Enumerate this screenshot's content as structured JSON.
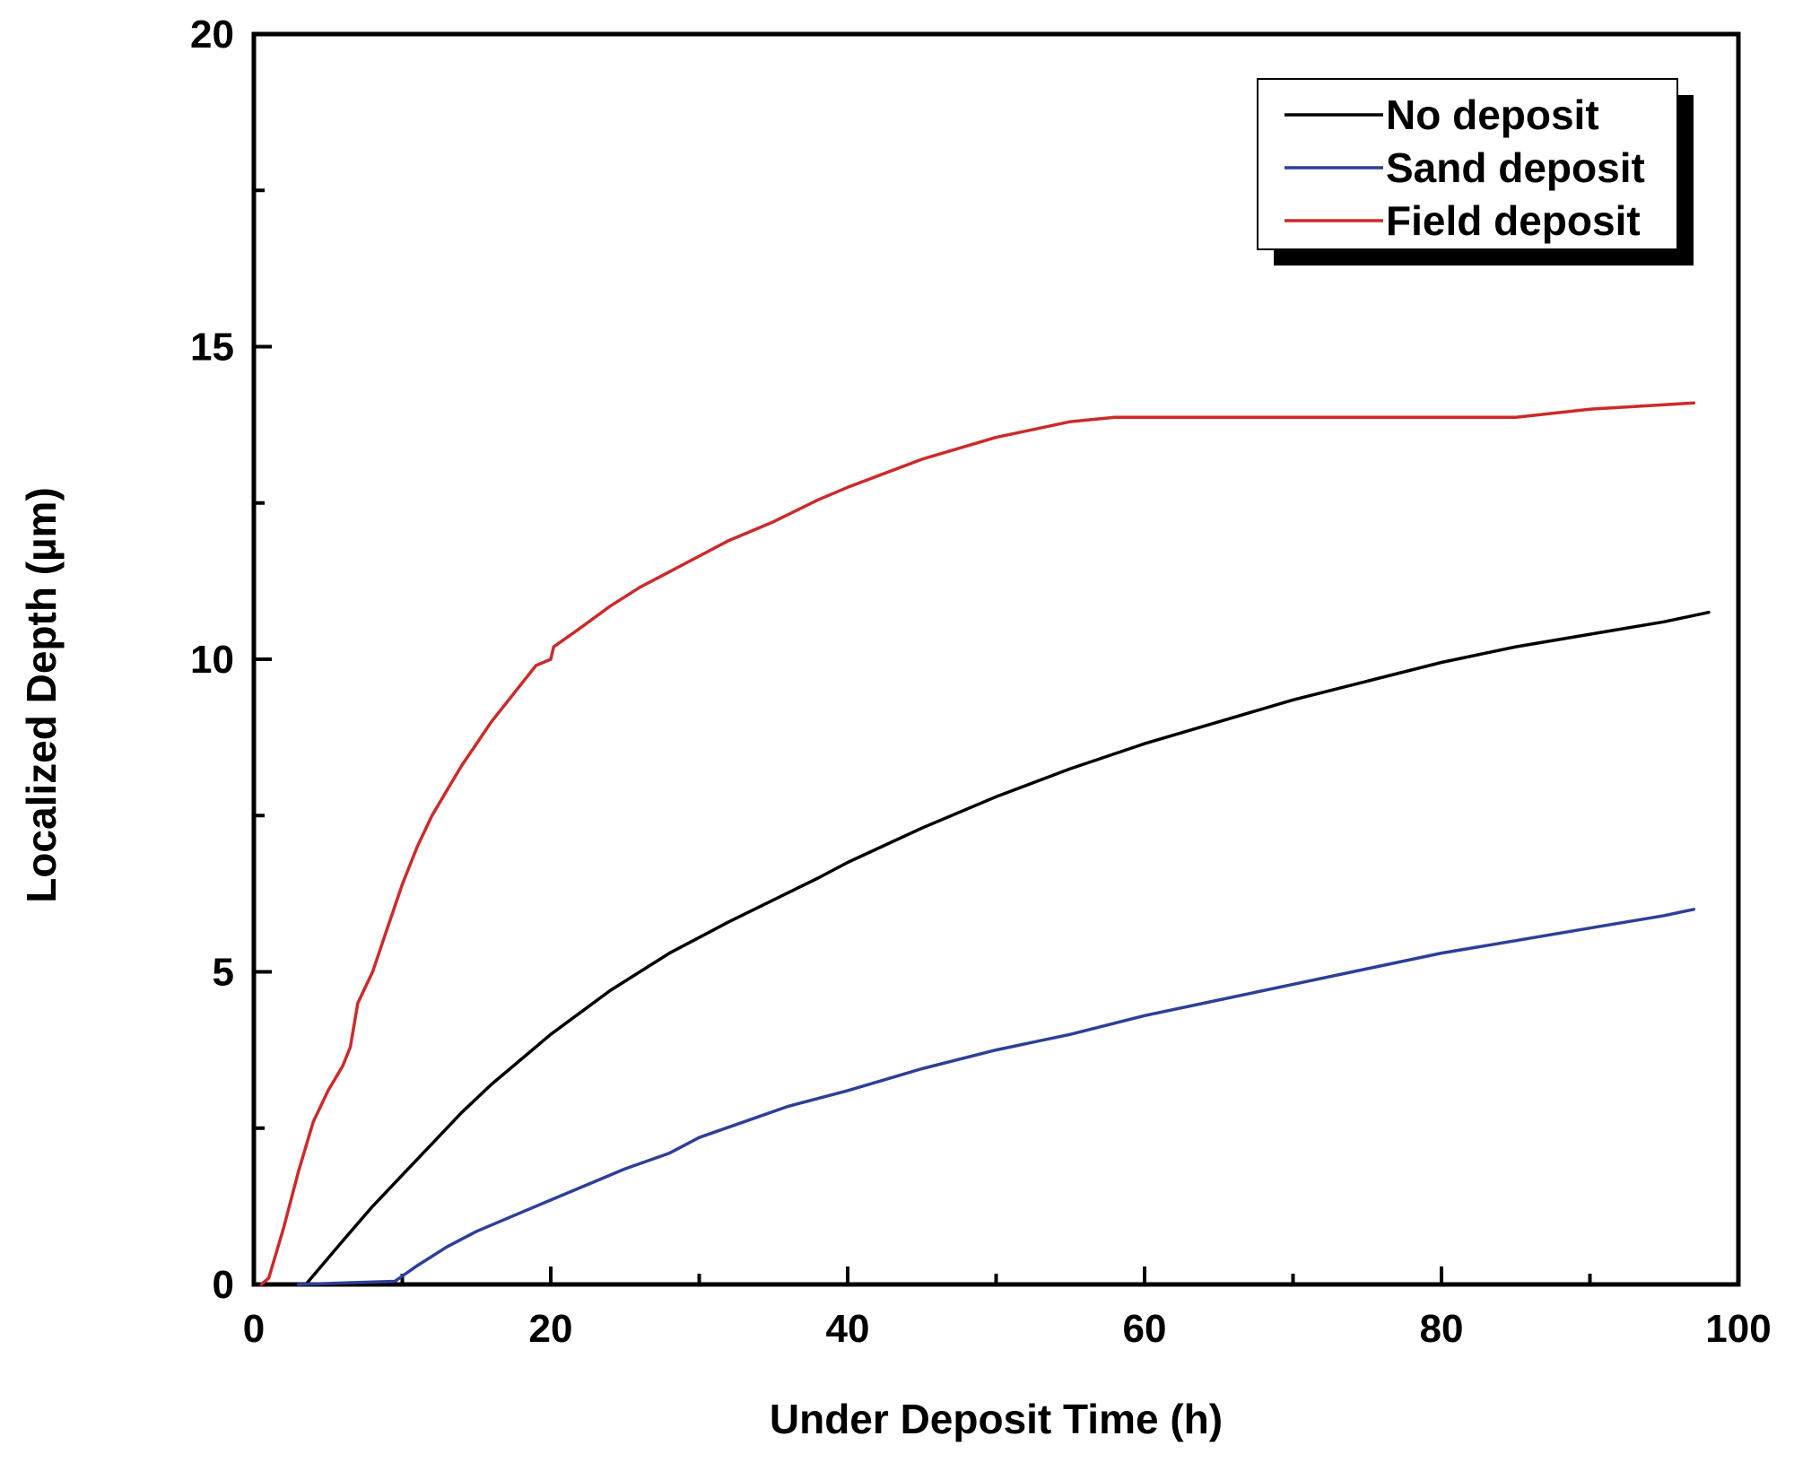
{
  "chart_data": {
    "type": "line",
    "title": "",
    "xlabel": "Under Deposit Time (h)",
    "ylabel": "Localized Depth (µm)",
    "xlim": [
      0,
      100
    ],
    "ylim": [
      0,
      20
    ],
    "x_ticks": [
      0,
      20,
      40,
      60,
      80,
      100
    ],
    "y_ticks": [
      0,
      5,
      10,
      15,
      20
    ],
    "x_tick_labels": [
      "0",
      "20",
      "40",
      "60",
      "80",
      "100"
    ],
    "y_tick_labels": [
      "0",
      "5",
      "10",
      "15",
      "20"
    ],
    "grid": false,
    "legend_position": "top-right",
    "series": [
      {
        "name": "No deposit",
        "color": "#000000",
        "points": [
          [
            3.5,
            0
          ],
          [
            6,
            0.7
          ],
          [
            8,
            1.25
          ],
          [
            10,
            1.75
          ],
          [
            12,
            2.25
          ],
          [
            14,
            2.75
          ],
          [
            16,
            3.2
          ],
          [
            18,
            3.6
          ],
          [
            20,
            4.0
          ],
          [
            22,
            4.35
          ],
          [
            24,
            4.7
          ],
          [
            26,
            5.0
          ],
          [
            28,
            5.3
          ],
          [
            30,
            5.55
          ],
          [
            32,
            5.8
          ],
          [
            35,
            6.15
          ],
          [
            38,
            6.5
          ],
          [
            40,
            6.75
          ],
          [
            45,
            7.3
          ],
          [
            50,
            7.8
          ],
          [
            55,
            8.25
          ],
          [
            60,
            8.65
          ],
          [
            65,
            9.0
          ],
          [
            70,
            9.35
          ],
          [
            75,
            9.65
          ],
          [
            80,
            9.95
          ],
          [
            85,
            10.2
          ],
          [
            90,
            10.4
          ],
          [
            95,
            10.6
          ],
          [
            98,
            10.75
          ]
        ]
      },
      {
        "name": "Sand deposit",
        "color": "#2c3f9a",
        "points": [
          [
            3,
            0
          ],
          [
            9.5,
            0.05
          ],
          [
            11,
            0.3
          ],
          [
            13,
            0.6
          ],
          [
            15,
            0.85
          ],
          [
            18,
            1.15
          ],
          [
            20,
            1.35
          ],
          [
            22,
            1.55
          ],
          [
            25,
            1.85
          ],
          [
            28,
            2.1
          ],
          [
            30,
            2.35
          ],
          [
            33,
            2.6
          ],
          [
            36,
            2.85
          ],
          [
            40,
            3.1
          ],
          [
            45,
            3.45
          ],
          [
            50,
            3.75
          ],
          [
            55,
            4.0
          ],
          [
            60,
            4.3
          ],
          [
            65,
            4.55
          ],
          [
            70,
            4.8
          ],
          [
            75,
            5.05
          ],
          [
            80,
            5.3
          ],
          [
            85,
            5.5
          ],
          [
            90,
            5.7
          ],
          [
            95,
            5.9
          ],
          [
            97,
            6.0
          ]
        ]
      },
      {
        "name": "Field deposit",
        "color": "#cc2a2a",
        "points": [
          [
            0.5,
            0
          ],
          [
            1,
            0.1
          ],
          [
            2,
            0.9
          ],
          [
            3,
            1.8
          ],
          [
            4,
            2.6
          ],
          [
            5,
            3.1
          ],
          [
            6,
            3.5
          ],
          [
            6.5,
            3.8
          ],
          [
            7,
            4.5
          ],
          [
            8,
            5.0
          ],
          [
            9,
            5.7
          ],
          [
            10,
            6.4
          ],
          [
            11,
            7.0
          ],
          [
            12,
            7.5
          ],
          [
            13,
            7.9
          ],
          [
            14,
            8.3
          ],
          [
            15,
            8.65
          ],
          [
            16,
            9.0
          ],
          [
            17,
            9.3
          ],
          [
            18,
            9.6
          ],
          [
            19,
            9.9
          ],
          [
            20,
            10.0
          ],
          [
            20.2,
            10.2
          ],
          [
            22,
            10.5
          ],
          [
            24,
            10.85
          ],
          [
            26,
            11.15
          ],
          [
            28,
            11.4
          ],
          [
            30,
            11.65
          ],
          [
            32,
            11.9
          ],
          [
            35,
            12.2
          ],
          [
            38,
            12.55
          ],
          [
            40,
            12.75
          ],
          [
            45,
            13.2
          ],
          [
            50,
            13.55
          ],
          [
            55,
            13.8
          ],
          [
            58,
            13.87
          ],
          [
            65,
            13.87
          ],
          [
            75,
            13.87
          ],
          [
            85,
            13.87
          ],
          [
            90,
            14.0
          ],
          [
            97,
            14.1
          ]
        ]
      }
    ]
  }
}
